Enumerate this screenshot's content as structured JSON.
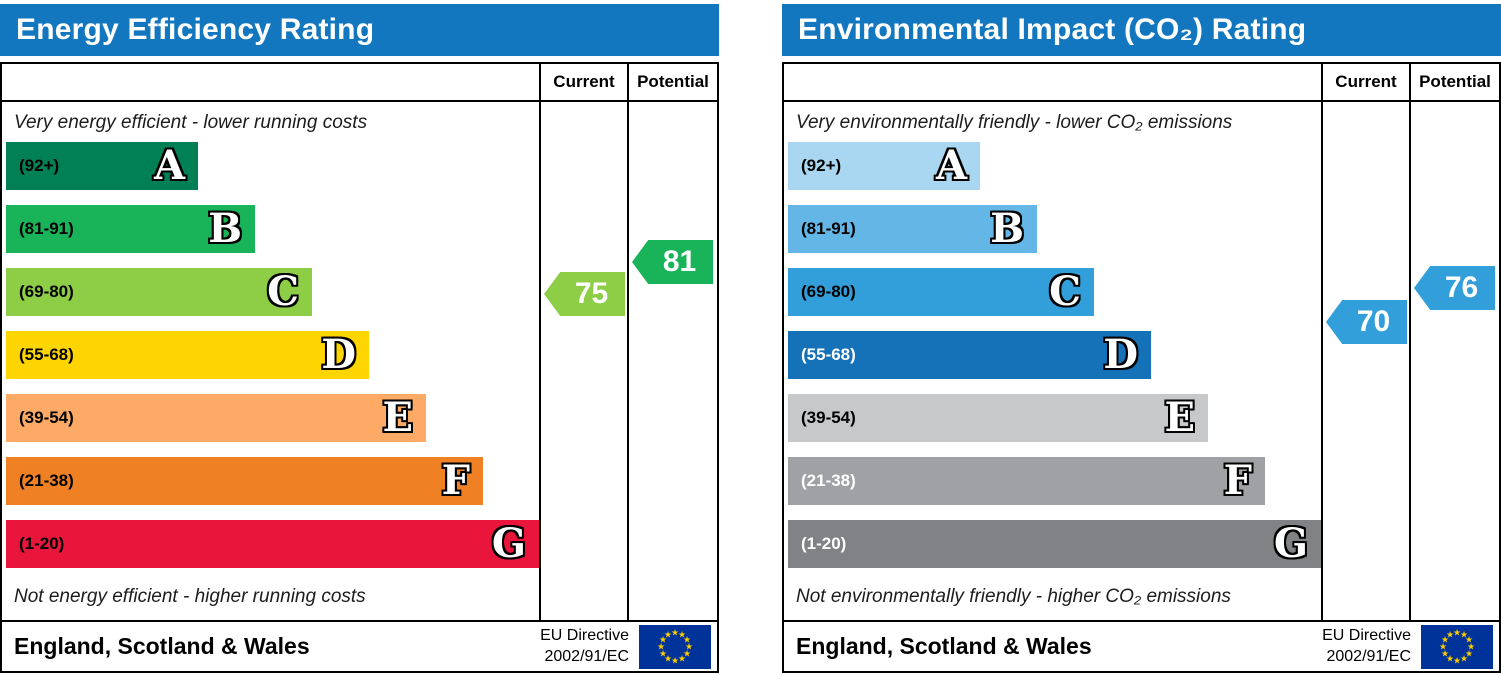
{
  "header_color": "#1377bf",
  "flag": {
    "background": "#003399",
    "star_color": "#ffcc00",
    "star_glyph": "★"
  },
  "energy": {
    "title": "Energy Efficiency Rating",
    "columns": {
      "current": "Current",
      "potential": "Potential"
    },
    "top_note": "Very energy efficient - lower running costs",
    "bottom_note": "Not energy efficient - higher running costs",
    "bands": [
      {
        "range": "(92+)",
        "letter": "A",
        "color": "#008054",
        "label_color": "#000000"
      },
      {
        "range": "(81-91)",
        "letter": "B",
        "color": "#19b459",
        "label_color": "#000000"
      },
      {
        "range": "(69-80)",
        "letter": "C",
        "color": "#8dce46",
        "label_color": "#000000"
      },
      {
        "range": "(55-68)",
        "letter": "D",
        "color": "#ffd500",
        "label_color": "#000000"
      },
      {
        "range": "(39-54)",
        "letter": "E",
        "color": "#fcaa65",
        "label_color": "#000000"
      },
      {
        "range": "(21-38)",
        "letter": "F",
        "color": "#ef8023",
        "label_color": "#000000"
      },
      {
        "range": "(1-20)",
        "letter": "G",
        "color": "#e9153b",
        "label_color": "#000000"
      }
    ],
    "current": {
      "value": "75",
      "color": "#8dce46"
    },
    "potential": {
      "value": "81",
      "color": "#19b459"
    },
    "footer": {
      "region": "England, Scotland & Wales",
      "directive_line1": "EU Directive",
      "directive_line2": "2002/91/EC"
    }
  },
  "co2": {
    "title": "Environmental Impact (CO₂) Rating",
    "columns": {
      "current": "Current",
      "potential": "Potential"
    },
    "top_note": "Very environmentally friendly - lower CO₂ emissions",
    "bottom_note": "Not environmentally friendly - higher CO₂ emissions",
    "bands": [
      {
        "range": "(92+)",
        "letter": "A",
        "color": "#a9d7f2",
        "label_color": "#000000"
      },
      {
        "range": "(81-91)",
        "letter": "B",
        "color": "#63b6e5",
        "label_color": "#000000"
      },
      {
        "range": "(69-80)",
        "letter": "C",
        "color": "#329fda",
        "label_color": "#000000"
      },
      {
        "range": "(55-68)",
        "letter": "D",
        "color": "#1672b8",
        "label_color": "#ffffff"
      },
      {
        "range": "(39-54)",
        "letter": "E",
        "color": "#c7c8ca",
        "label_color": "#000000"
      },
      {
        "range": "(21-38)",
        "letter": "F",
        "color": "#9fa1a4",
        "label_color": "#ffffff"
      },
      {
        "range": "(1-20)",
        "letter": "G",
        "color": "#808285",
        "label_color": "#ffffff"
      }
    ],
    "current": {
      "value": "70",
      "color": "#329fda"
    },
    "potential": {
      "value": "76",
      "color": "#329fda"
    },
    "footer": {
      "region": "England, Scotland & Wales",
      "directive_line1": "EU Directive",
      "directive_line2": "2002/91/EC"
    }
  },
  "chart_data": [
    {
      "type": "bar",
      "title": "Energy Efficiency Rating",
      "categories": [
        "A",
        "B",
        "C",
        "D",
        "E",
        "F",
        "G"
      ],
      "band_ranges": [
        "92+",
        "81-91",
        "69-80",
        "55-68",
        "39-54",
        "21-38",
        "1-20"
      ],
      "band_colors": [
        "#008054",
        "#19b459",
        "#8dce46",
        "#ffd500",
        "#fcaa65",
        "#ef8023",
        "#e9153b"
      ],
      "current": 75,
      "potential": 81,
      "current_band": "C",
      "potential_band": "B",
      "scale_note_top": "Very energy efficient - lower running costs",
      "scale_note_bottom": "Not energy efficient - higher running costs",
      "region": "England, Scotland & Wales",
      "directive": "EU Directive 2002/91/EC"
    },
    {
      "type": "bar",
      "title": "Environmental Impact (CO₂) Rating",
      "categories": [
        "A",
        "B",
        "C",
        "D",
        "E",
        "F",
        "G"
      ],
      "band_ranges": [
        "92+",
        "81-91",
        "69-80",
        "55-68",
        "39-54",
        "21-38",
        "1-20"
      ],
      "band_colors": [
        "#a9d7f2",
        "#63b6e5",
        "#329fda",
        "#1672b8",
        "#c7c8ca",
        "#9fa1a4",
        "#808285"
      ],
      "current": 70,
      "potential": 76,
      "current_band": "C",
      "potential_band": "C",
      "scale_note_top": "Very environmentally friendly - lower CO₂ emissions",
      "scale_note_bottom": "Not environmentally friendly - higher CO₂ emissions",
      "region": "England, Scotland & Wales",
      "directive": "EU Directive 2002/91/EC"
    }
  ]
}
